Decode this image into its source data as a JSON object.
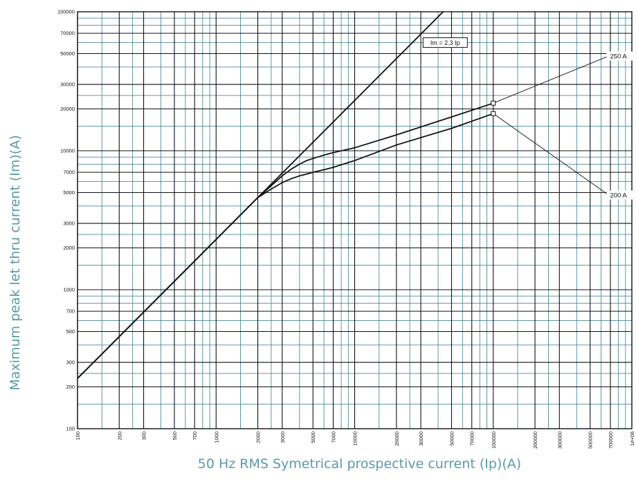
{
  "chart_data": {
    "type": "line",
    "xlabel": "50 Hz RMS Symetrical prospective current (Ip)(A)",
    "ylabel": "Maximum peak let thru current (Im)(A)",
    "x_scale": "log",
    "y_scale": "log",
    "xlim": [
      100,
      1000000
    ],
    "ylim": [
      100,
      100000
    ],
    "grid": true,
    "x_tick_labels": [
      "100",
      "200",
      "300",
      "500",
      "700",
      "1000",
      "2000",
      "3000",
      "5000",
      "7000",
      "10000",
      "20000",
      "30000",
      "50000",
      "70000",
      "100000",
      "200000",
      "300000",
      "500000",
      "700000",
      "1e+06"
    ],
    "x_tick_values": [
      100,
      200,
      300,
      500,
      700,
      1000,
      2000,
      3000,
      5000,
      7000,
      10000,
      20000,
      30000,
      50000,
      70000,
      100000,
      200000,
      300000,
      500000,
      700000,
      1000000
    ],
    "y_tick_labels": [
      "100",
      "200",
      "300",
      "500",
      "700",
      "1000",
      "2000",
      "3000",
      "5000",
      "7000",
      "10000",
      "20000",
      "30000",
      "50000",
      "70000",
      "100000"
    ],
    "y_tick_values": [
      100,
      200,
      300,
      500,
      700,
      1000,
      2000,
      3000,
      5000,
      7000,
      10000,
      20000,
      30000,
      50000,
      70000,
      100000
    ],
    "series": [
      {
        "name": "Im = 2.3 Ip",
        "x": [
          100,
          43478
        ],
        "y": [
          230,
          100000
        ]
      },
      {
        "name": "250 A",
        "x": [
          100,
          1000,
          2000,
          2500,
          3000,
          3500,
          4000,
          4500,
          5000,
          6000,
          7000,
          10000,
          20000,
          50000,
          100000
        ],
        "y": [
          230,
          2300,
          4600,
          5600,
          6600,
          7400,
          8000,
          8500,
          8800,
          9300,
          9700,
          10500,
          13000,
          17500,
          22000
        ]
      },
      {
        "name": "200 A",
        "x": [
          100,
          1000,
          2000,
          2500,
          3000,
          3500,
          4000,
          4500,
          5000,
          6000,
          7000,
          10000,
          20000,
          50000,
          100000
        ],
        "y": [
          230,
          2300,
          4600,
          5300,
          5900,
          6300,
          6600,
          6800,
          7000,
          7300,
          7600,
          8500,
          11000,
          14500,
          18500
        ]
      }
    ],
    "annotations": [
      {
        "text": "Im = 2.3 Ip",
        "x": 45000,
        "y": 60000,
        "boxed": true
      },
      {
        "text": "250 A",
        "x": 680000,
        "y": 48000,
        "marker_x": 100000,
        "marker_y": 22000
      },
      {
        "text": "200 A",
        "x": 680000,
        "y": 4800,
        "marker_x": 100000,
        "marker_y": 18500
      }
    ]
  }
}
